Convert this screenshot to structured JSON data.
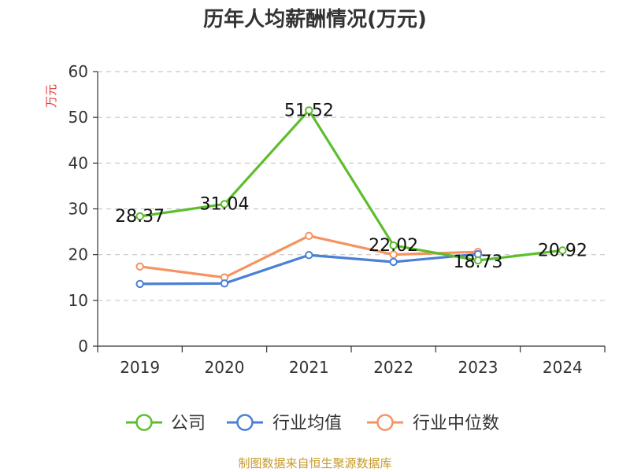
{
  "chart_data": {
    "type": "line",
    "title": "历年人均薪酬情况(万元)",
    "ylabel": "万元",
    "xlabel": "",
    "categories": [
      "2019",
      "2020",
      "2021",
      "2022",
      "2023",
      "2024"
    ],
    "ylim": [
      0,
      60
    ],
    "yticks": [
      0,
      10,
      20,
      30,
      40,
      50,
      60
    ],
    "grid": true,
    "legend_position": "bottom",
    "series": [
      {
        "name": "公司",
        "color": "#5dbe2c",
        "values": [
          28.37,
          31.04,
          51.52,
          22.02,
          18.73,
          20.92
        ],
        "labels": [
          "28.37",
          "31.04",
          "51.52",
          "22.02",
          "18.73",
          "20.92"
        ]
      },
      {
        "name": "行业均值",
        "color": "#4a7fd6",
        "values": [
          13.6,
          13.7,
          19.9,
          18.4,
          20.1,
          null
        ]
      },
      {
        "name": "行业中位数",
        "color": "#f59361",
        "values": [
          17.4,
          15.0,
          24.1,
          20.0,
          20.6,
          null
        ]
      }
    ],
    "source": "制图数据来自恒生聚源数据库"
  }
}
